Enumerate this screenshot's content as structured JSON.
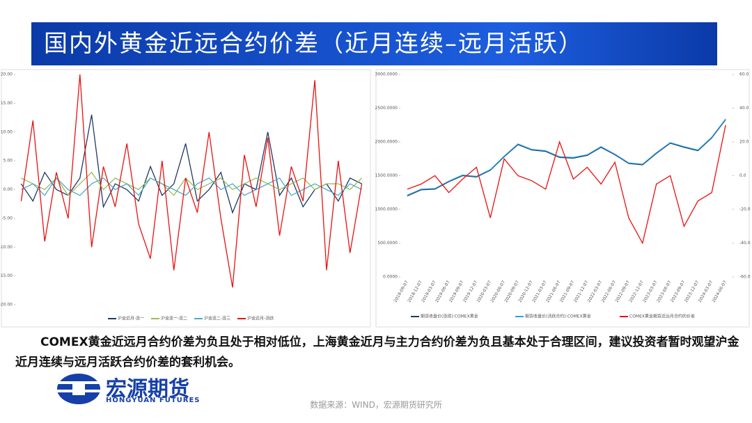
{
  "header": {
    "title": "国内外黄金近远合约价差（近月连续–远月活跃）"
  },
  "chart_data": [
    {
      "type": "line",
      "categories": [
        null,
        null,
        null,
        null,
        null,
        null,
        null,
        null,
        null,
        null,
        null,
        null,
        null,
        null,
        null,
        null,
        null,
        null,
        null,
        null,
        null,
        null,
        null,
        null,
        null,
        null,
        null,
        null,
        null,
        null
      ],
      "series": [
        {
          "name": "沪金近月-连一",
          "color": "#1f3864",
          "values": [
            1,
            -2,
            3,
            0,
            -1,
            2,
            13,
            -3,
            1,
            0,
            -2,
            4,
            -1,
            1,
            8,
            -2,
            0,
            3,
            -4,
            1,
            0,
            10,
            -1,
            2,
            -3,
            0,
            1,
            -2,
            2,
            1
          ]
        },
        {
          "name": "沪金连一-连二",
          "color": "#9bbb59",
          "values": [
            2,
            1,
            0,
            2,
            -1,
            1,
            3,
            0,
            2,
            1,
            0,
            2,
            1,
            -1,
            2,
            0,
            1,
            2,
            0,
            1,
            2,
            1,
            0,
            1,
            2,
            0,
            1,
            1,
            0,
            2
          ]
        },
        {
          "name": "沪金连二-连三",
          "color": "#4bacc6",
          "values": [
            0,
            1,
            -1,
            2,
            0,
            -1,
            1,
            2,
            0,
            1,
            -1,
            2,
            1,
            0,
            -1,
            1,
            2,
            0,
            1,
            -1,
            0,
            1,
            2,
            -1,
            0,
            1,
            0,
            -1,
            1,
            0
          ]
        },
        {
          "name": "沪金近月-活跃",
          "color": "#e8110f",
          "values": [
            -2,
            12,
            -9,
            3,
            -5,
            20,
            -10,
            4,
            -3,
            8,
            -6,
            -12,
            5,
            -14,
            2,
            -4,
            10,
            -5,
            -17,
            6,
            -3,
            9,
            -8,
            4,
            -2,
            19,
            -14,
            5,
            -11,
            1
          ]
        }
      ],
      "ylim": [
        -20,
        20
      ],
      "yticks": [
        {
          "value": -20,
          "label": "-20.00"
        },
        {
          "value": -15,
          "label": "-15.00"
        },
        {
          "value": -10,
          "label": "-10.00"
        },
        {
          "value": -5,
          "label": "-5.00"
        },
        {
          "value": 0,
          "label": "0.00"
        },
        {
          "value": 5,
          "label": "5.00"
        },
        {
          "value": 10,
          "label": "10.00"
        },
        {
          "value": 15,
          "label": "15.00"
        },
        {
          "value": 20,
          "label": "20.00"
        }
      ]
    },
    {
      "type": "line",
      "categories": [
        "2018-09-07",
        "2018-12-07",
        "2019-03-07",
        "2019-06-07",
        "2019-09-07",
        "2019-12-07",
        "2020-03-07",
        "2020-06-07",
        "2020-09-07",
        "2020-12-07",
        "2021-03-07",
        "2021-06-07",
        "2021-09-07",
        "2021-12-07",
        "2022-03-07",
        "2022-06-07",
        "2022-09-07",
        "2022-12-07",
        "2023-03-07",
        "2023-06-07",
        "2023-09-07",
        "2023-12-07",
        "2024-03-07",
        "2024-06-07"
      ],
      "series": [
        {
          "name": "期货收盘价(连续):COMEX黄金",
          "color": "#1f3864",
          "values": [
            1200,
            1290,
            1300,
            1410,
            1500,
            1480,
            1580,
            1780,
            1960,
            1880,
            1860,
            1770,
            1760,
            1800,
            1920,
            1810,
            1680,
            1660,
            1830,
            1980,
            1920,
            1870,
            2060,
            2330
          ]
        },
        {
          "name": "期货收盘价(活跃合约):COMEX黄金",
          "color": "#2e9fdc",
          "values": [
            1210,
            1300,
            1310,
            1420,
            1510,
            1490,
            1590,
            1790,
            1970,
            1890,
            1870,
            1780,
            1770,
            1810,
            1930,
            1820,
            1690,
            1670,
            1840,
            1990,
            1930,
            1880,
            2070,
            2340
          ]
        },
        {
          "name": "COMEX黄金期货近远月合约的价差",
          "color": "#e8110f",
          "axis": "y2",
          "values": [
            -8,
            -5,
            0,
            -10,
            -2,
            5,
            -25,
            10,
            0,
            -3,
            -8,
            20,
            -2,
            5,
            -5,
            8,
            -25,
            -40,
            -5,
            0,
            -30,
            -15,
            -10,
            30
          ]
        }
      ],
      "ylim": [
        0,
        3000
      ],
      "yticks": [
        {
          "value": 0,
          "label": "0.0000"
        },
        {
          "value": 500,
          "label": "500.0000"
        },
        {
          "value": 1000,
          "label": "1000.0000"
        },
        {
          "value": 1500,
          "label": "1500.0000"
        },
        {
          "value": 2000,
          "label": "2000.0000"
        },
        {
          "value": 2500,
          "label": "2500.0000"
        },
        {
          "value": 3000,
          "label": "3000.0000"
        }
      ],
      "y2lim": [
        -60,
        60
      ],
      "y2ticks": [
        {
          "value": -60,
          "label": "-60.0"
        },
        {
          "value": -40,
          "label": "-40.0"
        },
        {
          "value": -20,
          "label": "-20.0"
        },
        {
          "value": 0,
          "label": "0.0"
        },
        {
          "value": 20,
          "label": "20.0"
        },
        {
          "value": 40,
          "label": "40.0"
        },
        {
          "value": 60,
          "label": "60.0"
        }
      ]
    }
  ],
  "body": {
    "text": "COMEX黄金近远月合约价差为负且处于相对低位，上海黄金近月与主力合约价差为负且基本处于合理区间，建议投资者暂时观望沪金近月连续与远月活跃合约价差的套利机会。"
  },
  "logo": {
    "name": "宏源期货",
    "english": "HONGYUAN FUTURES"
  },
  "footer": {
    "source": "数据来源：WIND，宏源期货研究所"
  }
}
